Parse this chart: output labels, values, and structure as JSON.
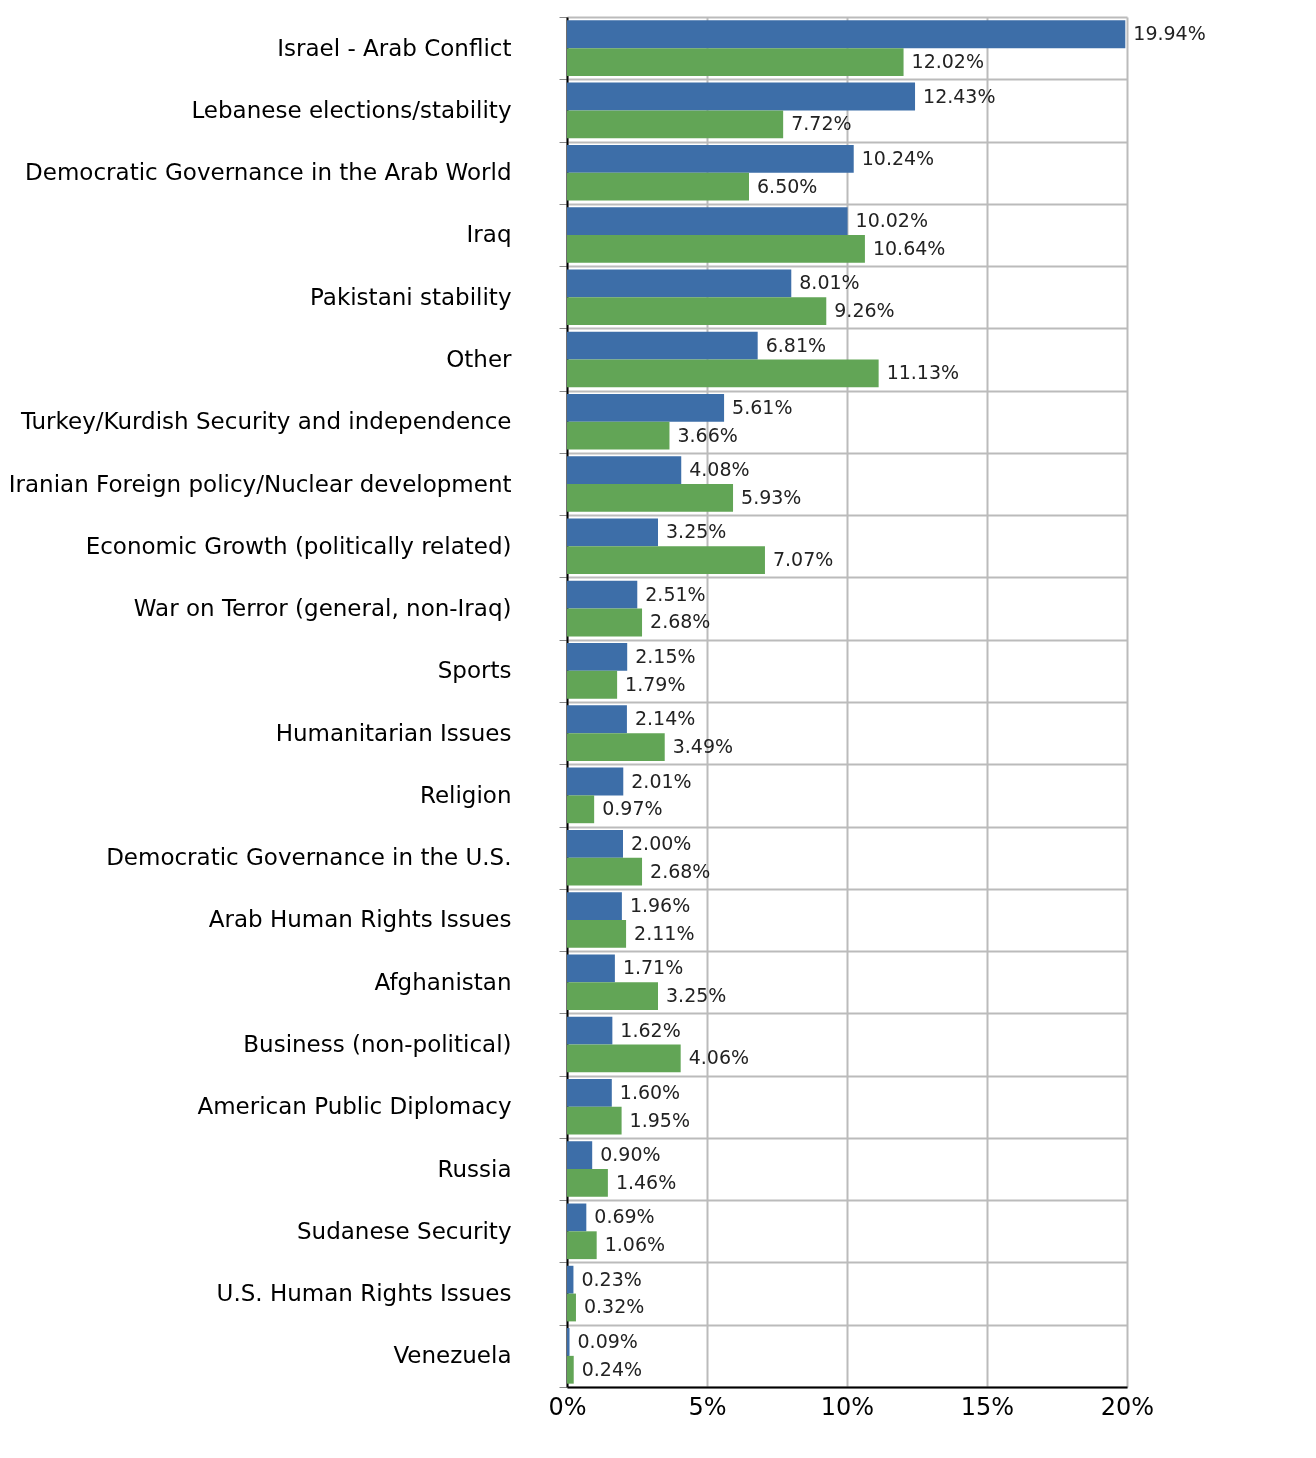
{
  "chart_data": {
    "type": "bar",
    "orientation": "horizontal",
    "categories": [
      "Israel - Arab Conflict",
      "Lebanese elections/stability",
      "Democratic Governance in the Arab World",
      "Iraq",
      "Pakistani stability",
      "Other",
      "Turkey/Kurdish Security and independence",
      "Iranian Foreign policy/Nuclear development",
      "Economic Growth (politically related)",
      "War on Terror (general, non-Iraq)",
      "Sports",
      "Humanitarian Issues",
      "Religion",
      "Democratic Governance in the U.S.",
      "Arab Human Rights Issues",
      "Afghanistan",
      "Business (non-political)",
      "American Public Diplomacy",
      "Russia",
      "Sudanese Security",
      "U.S. Human Rights Issues",
      "Venezuela"
    ],
    "series": [
      {
        "color": "#3d6ea8",
        "values": [
          19.94,
          12.43,
          10.24,
          10.02,
          8.01,
          6.81,
          5.61,
          4.08,
          3.25,
          2.51,
          2.15,
          2.14,
          2.01,
          2.0,
          1.96,
          1.71,
          1.62,
          1.6,
          0.9,
          0.69,
          0.23,
          0.09
        ],
        "value_labels": [
          "19.94%",
          "12.43%",
          "10.24%",
          "10.02%",
          "8.01%",
          "6.81%",
          "5.61%",
          "4.08%",
          "3.25%",
          "2.51%",
          "2.15%",
          "2.14%",
          "2.01%",
          "2.00%",
          "1.96%",
          "1.71%",
          "1.62%",
          "1.60%",
          "0.90%",
          "0.69%",
          "0.23%",
          "0.09%"
        ]
      },
      {
        "color": "#62a556",
        "values": [
          12.02,
          7.72,
          6.5,
          10.64,
          9.26,
          11.13,
          3.66,
          5.93,
          7.07,
          2.68,
          1.79,
          3.49,
          0.97,
          2.68,
          2.11,
          3.25,
          4.06,
          1.95,
          1.46,
          1.06,
          0.32,
          0.24
        ],
        "value_labels": [
          "12.02%",
          "7.72%",
          "6.50%",
          "10.64%",
          "9.26%",
          "11.13%",
          "3.66%",
          "5.93%",
          "7.07%",
          "2.68%",
          "1.79%",
          "3.49%",
          "0.97%",
          "2.68%",
          "2.11%",
          "3.25%",
          "4.06%",
          "1.95%",
          "1.46%",
          "1.06%",
          "0.32%",
          "0.24%"
        ]
      }
    ],
    "xlim": [
      0,
      20
    ],
    "xticks": [
      {
        "value": 0,
        "label": "0%"
      },
      {
        "value": 5,
        "label": "5%"
      },
      {
        "value": 10,
        "label": "10%"
      },
      {
        "value": 15,
        "label": "15%"
      },
      {
        "value": 20,
        "label": "20%"
      }
    ],
    "grid": true,
    "legend": false
  }
}
